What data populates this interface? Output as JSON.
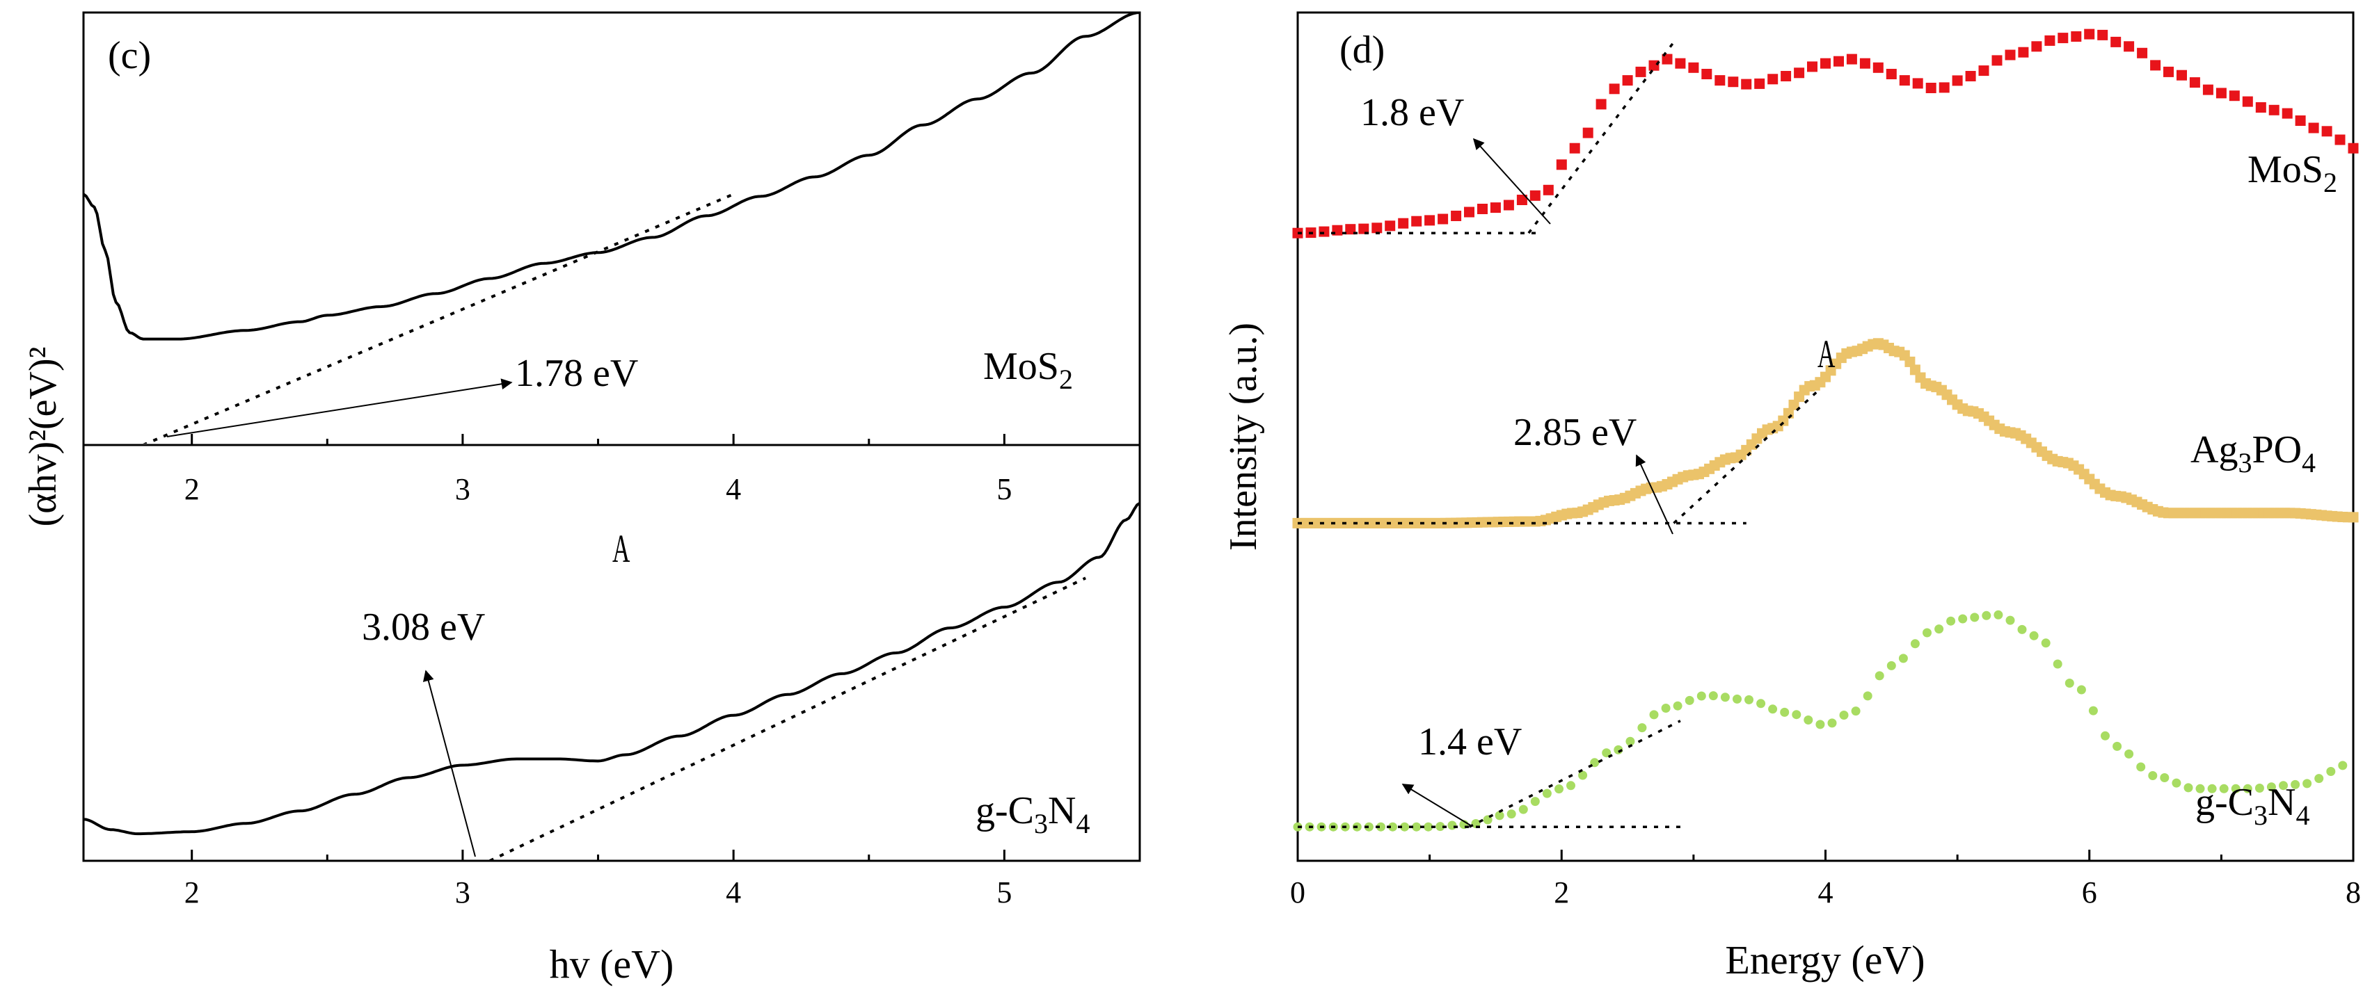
{
  "chart_data": [
    {
      "panel": "(c)",
      "type": "line",
      "xlabel": "hv (eV)",
      "ylabel": "(αhv)²(eV)²",
      "xlim": [
        1.6,
        5.5
      ],
      "xticks": [
        "2",
        "3",
        "4",
        "5"
      ],
      "stray_label": "A",
      "subplots": [
        {
          "name": "MoS2",
          "label_main": "MoS",
          "label_sub": "2",
          "bandgap_label": "1.78 eV",
          "bandgap_value": 1.78,
          "ylim": [
            0,
            1
          ],
          "curve": [
            [
              1.6,
              0.58
            ],
            [
              1.64,
              0.55
            ],
            [
              1.68,
              0.45
            ],
            [
              1.72,
              0.33
            ],
            [
              1.77,
              0.26
            ],
            [
              1.82,
              0.245
            ],
            [
              1.95,
              0.245
            ],
            [
              2.2,
              0.265
            ],
            [
              2.4,
              0.285
            ],
            [
              2.5,
              0.3
            ],
            [
              2.7,
              0.32
            ],
            [
              2.9,
              0.35
            ],
            [
              3.1,
              0.385
            ],
            [
              3.3,
              0.42
            ],
            [
              3.5,
              0.445
            ],
            [
              3.7,
              0.48
            ],
            [
              3.9,
              0.53
            ],
            [
              4.1,
              0.575
            ],
            [
              4.3,
              0.62
            ],
            [
              4.5,
              0.67
            ],
            [
              4.7,
              0.74
            ],
            [
              4.9,
              0.8
            ],
            [
              5.1,
              0.86
            ],
            [
              5.3,
              0.945
            ],
            [
              5.5,
              1.0
            ]
          ],
          "tangent": [
            [
              1.82,
              0.0
            ],
            [
              4.0,
              0.58
            ]
          ]
        },
        {
          "name": "g-C3N4",
          "label_parts": [
            "g-C",
            "3",
            "N",
            "4"
          ],
          "bandgap_label": "3.08 eV",
          "bandgap_value": 3.08,
          "ylim": [
            0,
            1
          ],
          "curve": [
            [
              1.6,
              0.1
            ],
            [
              1.7,
              0.075
            ],
            [
              1.8,
              0.065
            ],
            [
              2.0,
              0.07
            ],
            [
              2.2,
              0.09
            ],
            [
              2.4,
              0.12
            ],
            [
              2.6,
              0.16
            ],
            [
              2.8,
              0.2
            ],
            [
              3.0,
              0.23
            ],
            [
              3.2,
              0.245
            ],
            [
              3.35,
              0.245
            ],
            [
              3.5,
              0.24
            ],
            [
              3.6,
              0.255
            ],
            [
              3.8,
              0.3
            ],
            [
              4.0,
              0.35
            ],
            [
              4.2,
              0.4
            ],
            [
              4.4,
              0.45
            ],
            [
              4.6,
              0.5
            ],
            [
              4.8,
              0.56
            ],
            [
              5.0,
              0.61
            ],
            [
              5.2,
              0.67
            ],
            [
              5.35,
              0.73
            ],
            [
              5.45,
              0.82
            ],
            [
              5.5,
              0.86
            ]
          ],
          "tangent": [
            [
              3.1,
              0.0
            ],
            [
              5.3,
              0.68
            ]
          ]
        }
      ]
    },
    {
      "panel": "(d)",
      "type": "scatter",
      "xlabel": "Energy (eV)",
      "ylabel": "Intensity (a.u.)",
      "xlim": [
        0,
        8
      ],
      "xticks": [
        "0",
        "2",
        "4",
        "6",
        "8"
      ],
      "ylim": [
        0,
        1
      ],
      "stray_label": "A",
      "series": [
        {
          "name": "MoS2",
          "label_main": "MoS",
          "label_sub": "2",
          "color": "#e8141a",
          "marker": "square",
          "bandgap_label": "1.8 eV",
          "bandgap_value": 1.8,
          "curve": [
            [
              0,
              0.74
            ],
            [
              0.5,
              0.745
            ],
            [
              1.0,
              0.755
            ],
            [
              1.5,
              0.77
            ],
            [
              1.85,
              0.785
            ],
            [
              2.1,
              0.84
            ],
            [
              2.4,
              0.91
            ],
            [
              2.6,
              0.93
            ],
            [
              2.8,
              0.945
            ],
            [
              3.0,
              0.935
            ],
            [
              3.2,
              0.92
            ],
            [
              3.45,
              0.915
            ],
            [
              3.7,
              0.925
            ],
            [
              4.0,
              0.94
            ],
            [
              4.2,
              0.945
            ],
            [
              4.4,
              0.935
            ],
            [
              4.6,
              0.92
            ],
            [
              4.85,
              0.91
            ],
            [
              5.1,
              0.925
            ],
            [
              5.4,
              0.95
            ],
            [
              5.8,
              0.97
            ],
            [
              6.05,
              0.975
            ],
            [
              6.3,
              0.96
            ],
            [
              6.6,
              0.93
            ],
            [
              7.0,
              0.905
            ],
            [
              7.4,
              0.885
            ],
            [
              7.8,
              0.86
            ],
            [
              8.0,
              0.84
            ]
          ],
          "baseline": [
            [
              0,
              0.74
            ],
            [
              1.85,
              0.74
            ]
          ],
          "tangent": [
            [
              1.75,
              0.74
            ],
            [
              2.85,
              0.965
            ]
          ]
        },
        {
          "name": "Ag3PO4",
          "label_parts": [
            "Ag",
            "3",
            "PO",
            "4"
          ],
          "color": "#ebc36a",
          "marker": "square",
          "bandgap_label": "2.85 eV",
          "bandgap_value": 2.85,
          "curve": [
            [
              0,
              0.398
            ],
            [
              1.0,
              0.398
            ],
            [
              1.8,
              0.4
            ],
            [
              2.1,
              0.41
            ],
            [
              2.4,
              0.425
            ],
            [
              2.7,
              0.44
            ],
            [
              3.0,
              0.455
            ],
            [
              3.3,
              0.475
            ],
            [
              3.6,
              0.51
            ],
            [
              3.9,
              0.56
            ],
            [
              4.2,
              0.6
            ],
            [
              4.4,
              0.61
            ],
            [
              4.55,
              0.6
            ],
            [
              4.8,
              0.56
            ],
            [
              5.1,
              0.53
            ],
            [
              5.4,
              0.505
            ],
            [
              5.8,
              0.47
            ],
            [
              6.2,
              0.43
            ],
            [
              6.6,
              0.41
            ],
            [
              7.0,
              0.41
            ],
            [
              7.5,
              0.41
            ],
            [
              8.0,
              0.405
            ]
          ],
          "baseline": [
            [
              0,
              0.398
            ],
            [
              3.4,
              0.398
            ]
          ],
          "tangent": [
            [
              2.85,
              0.398
            ],
            [
              3.95,
              0.555
            ]
          ]
        },
        {
          "name": "g-C3N4",
          "label_parts": [
            "g-C",
            "3",
            "N",
            "4"
          ],
          "color": "#a8dc62",
          "marker": "circle",
          "bandgap_label": "1.4 eV",
          "bandgap_value": 1.4,
          "curve": [
            [
              0,
              0.04
            ],
            [
              1.0,
              0.04
            ],
            [
              1.3,
              0.043
            ],
            [
              1.6,
              0.055
            ],
            [
              2.0,
              0.085
            ],
            [
              2.4,
              0.13
            ],
            [
              2.8,
              0.18
            ],
            [
              3.1,
              0.195
            ],
            [
              3.4,
              0.19
            ],
            [
              3.7,
              0.175
            ],
            [
              4.0,
              0.16
            ],
            [
              4.2,
              0.175
            ],
            [
              4.5,
              0.23
            ],
            [
              4.8,
              0.27
            ],
            [
              5.0,
              0.285
            ],
            [
              5.3,
              0.29
            ],
            [
              5.6,
              0.265
            ],
            [
              5.9,
              0.205
            ],
            [
              6.2,
              0.135
            ],
            [
              6.5,
              0.1
            ],
            [
              6.8,
              0.085
            ],
            [
              7.2,
              0.085
            ],
            [
              7.6,
              0.09
            ],
            [
              8.0,
              0.115
            ]
          ],
          "baseline": [
            [
              0,
              0.04
            ],
            [
              2.9,
              0.04
            ]
          ],
          "tangent": [
            [
              1.3,
              0.04
            ],
            [
              2.9,
              0.165
            ]
          ]
        }
      ]
    }
  ]
}
